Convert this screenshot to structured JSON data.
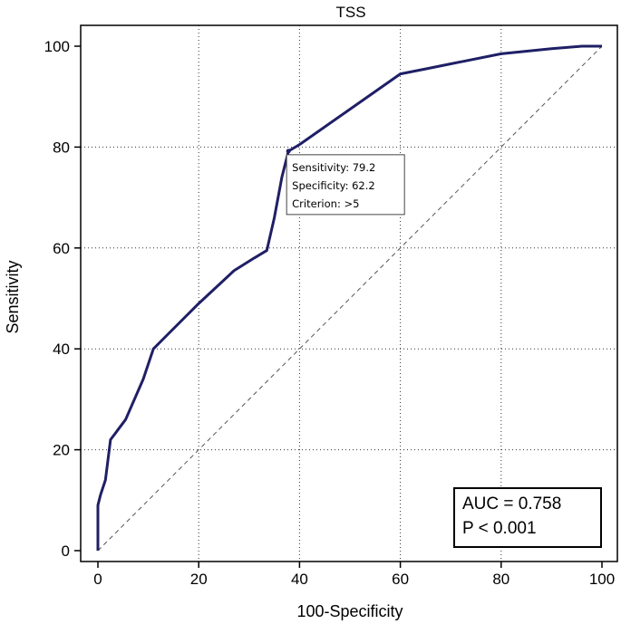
{
  "chart_data": {
    "type": "line",
    "title": "TSS",
    "xlabel": "100-Specificity",
    "ylabel": "Sensitivity",
    "xlim": [
      0,
      100
    ],
    "ylim": [
      0,
      100
    ],
    "x_ticks": [
      "0",
      "20",
      "40",
      "60",
      "80",
      "100"
    ],
    "y_ticks": [
      "0",
      "20",
      "40",
      "60",
      "80",
      "100"
    ],
    "grid": "dotted",
    "series": [
      {
        "color": "#1f1f66",
        "x": [
          0,
          0,
          0.5,
          1.5,
          2.5,
          5.5,
          9,
          11,
          14,
          20,
          27,
          31,
          33.5,
          35,
          36.5,
          37.8,
          40,
          50,
          60,
          65,
          70,
          80,
          90,
          96,
          100
        ],
        "y": [
          0,
          9,
          11,
          14,
          22,
          26,
          34,
          40,
          43,
          49,
          55.5,
          58,
          59.5,
          66,
          74,
          79.2,
          80.5,
          87.5,
          94.5,
          95.5,
          96.5,
          98.5,
          99.5,
          100,
          100
        ]
      }
    ],
    "reference_line": {
      "x": [
        0,
        100
      ],
      "y": [
        0,
        100
      ],
      "style": "dashed"
    },
    "annotation": {
      "point": {
        "x": 37.8,
        "y": 79.2
      },
      "lines": [
        "Sensitivity: 79.2",
        "Specificity: 62.2",
        "Criterion: >5"
      ]
    },
    "stats": {
      "auc": "AUC = 0.758",
      "p": "P < 0.001"
    }
  }
}
